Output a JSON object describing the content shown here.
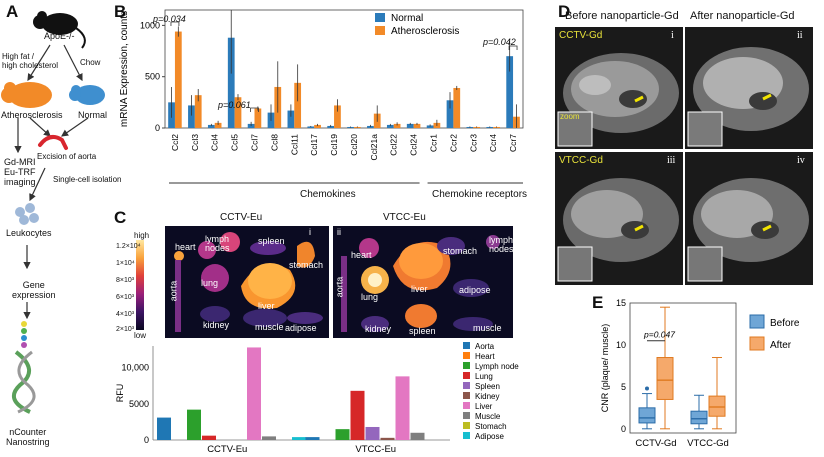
{
  "panels": {
    "a": "A",
    "b": "B",
    "c": "C",
    "d": "D",
    "e": "E"
  },
  "panel_a": {
    "mouse": "ApoE-/-",
    "diet_high": "High fat /\nhigh cholesterol",
    "diet_chow": "Chow",
    "athero": "Atherosclerosis",
    "normal": "Normal",
    "excision": "Excision of aorta",
    "imaging": "Gd-MRI\nEu-TRF\nimaging",
    "isolation": "Single-cell isolation",
    "leukocytes": "Leukocytes",
    "gene": "Gene\nexpression",
    "nanostring": "nCounter\nNanostring"
  },
  "panel_b": {
    "ylabel": "mRNA Expression, counts",
    "p1": "p=0.034",
    "p2": "p=0.061",
    "p3": "p=0.042",
    "group_chemokines": "Chemokines",
    "group_receptors": "Chemokine receptors"
  },
  "panel_c": {
    "img1_title": "CCTV-Eu",
    "img2_title": "VTCC-Eu",
    "img1_num": "i",
    "img2_num": "ii",
    "scale_high": "high",
    "scale_low": "low",
    "scale_ticks": [
      "1.2×10⁴",
      "1×10⁴",
      "8×10³",
      "6×10³",
      "4×10³",
      "2×10³"
    ],
    "organs1": [
      "heart",
      "lymph\nnodes",
      "spleen",
      "stomach",
      "aorta",
      "lung",
      "liver",
      "kidney",
      "muscle",
      "adipose"
    ],
    "organs2": [
      "heart",
      "stomach",
      "lymph\nnodes",
      "aorta",
      "lung",
      "liver",
      "adipose",
      "kidney",
      "spleen",
      "muscle"
    ]
  },
  "panel_d": {
    "before": "Before nanoparticle-Gd",
    "after": "After nanoparticle-Gd",
    "row1_label": "CCTV-Gd",
    "row2_label": "VTCC-Gd",
    "zoom": "zoom",
    "nums": [
      "i",
      "ii",
      "iii",
      "iv"
    ]
  },
  "chart_data": [
    {
      "type": "bar",
      "title": "",
      "ylabel": "mRNA Expression, counts",
      "xlabel": "",
      "ylim": [
        0,
        1150
      ],
      "yticks": [
        0,
        500,
        1000
      ],
      "categories": [
        "Ccl2",
        "Ccl3",
        "Ccl4",
        "Ccl5",
        "Ccl7",
        "Ccl8",
        "Ccl11",
        "Ccl17",
        "Ccl19",
        "Ccl20",
        "Ccl21a",
        "Ccl22",
        "Ccl24",
        "Ccr1",
        "Ccr2",
        "Ccr3",
        "Ccr4",
        "Ccr7"
      ],
      "series": [
        {
          "name": "Normal",
          "color": "#2b7bba",
          "values": [
            250,
            220,
            30,
            880,
            40,
            150,
            170,
            15,
            20,
            10,
            20,
            30,
            40,
            25,
            270,
            10,
            10,
            700
          ],
          "err": [
            150,
            100,
            10,
            350,
            20,
            80,
            60,
            5,
            10,
            5,
            10,
            10,
            10,
            10,
            80,
            5,
            5,
            150
          ]
        },
        {
          "name": "Atherosclerosis",
          "color": "#f28a28",
          "values": [
            940,
            320,
            50,
            300,
            190,
            400,
            440,
            30,
            220,
            10,
            140,
            40,
            40,
            50,
            390,
            10,
            10,
            110
          ],
          "err": [
            50,
            60,
            20,
            30,
            20,
            250,
            180,
            10,
            60,
            5,
            80,
            15,
            10,
            30,
            20,
            5,
            5,
            120
          ]
        }
      ],
      "legend": "top-right"
    },
    {
      "type": "bar",
      "ylabel": "RFU",
      "ylim": [
        0,
        13000
      ],
      "yticks": [
        0,
        5000,
        10000
      ],
      "ytick_labels": [
        "0",
        "5000",
        "10,000"
      ],
      "categories": [
        "CCTV-Eu",
        "VTCC-Eu"
      ],
      "series": [
        {
          "name": "Aorta",
          "color": "#1f77b4",
          "values": [
            3100,
            400
          ]
        },
        {
          "name": "Heart",
          "color": "#ff7f0e",
          "values": [
            0,
            0
          ]
        },
        {
          "name": "Lymph node",
          "color": "#2ca02c",
          "values": [
            4200,
            1500
          ]
        },
        {
          "name": "Lung",
          "color": "#d62728",
          "values": [
            600,
            6800
          ]
        },
        {
          "name": "Spleen",
          "color": "#9467bd",
          "values": [
            0,
            1800
          ]
        },
        {
          "name": "Kidney",
          "color": "#8c564b",
          "values": [
            0,
            300
          ]
        },
        {
          "name": "Liver",
          "color": "#e377c2",
          "values": [
            12800,
            8800
          ]
        },
        {
          "name": "Muscle",
          "color": "#7f7f7f",
          "values": [
            500,
            1000
          ]
        },
        {
          "name": "Stomach",
          "color": "#bcbd22",
          "values": [
            0,
            0
          ]
        },
        {
          "name": "Adipose",
          "color": "#17becf",
          "values": [
            400,
            0
          ]
        }
      ],
      "legend": "right"
    },
    {
      "type": "box",
      "ylabel": "CNR (plaque/ muscle)",
      "ylim": [
        -0.5,
        15
      ],
      "yticks": [
        0,
        5,
        10,
        15
      ],
      "categories": [
        "CCTV-Gd",
        "VTCC-Gd"
      ],
      "annotation": "p=0.047",
      "series": [
        {
          "name": "Before",
          "color": "#6fa6d6",
          "boxes": [
            {
              "min": 0,
              "q1": 0.7,
              "median": 1.3,
              "q3": 2.5,
              "max": 4.2,
              "outliers": [
                4.8
              ]
            },
            {
              "min": 0,
              "q1": 0.6,
              "median": 1.2,
              "q3": 2.1,
              "max": 4.0,
              "outliers": []
            }
          ]
        },
        {
          "name": "After",
          "color": "#f5a96b",
          "boxes": [
            {
              "min": 0,
              "q1": 3.5,
              "median": 5.8,
              "q3": 8.5,
              "max": 14.5,
              "outliers": []
            },
            {
              "min": 0,
              "q1": 1.5,
              "median": 2.6,
              "q3": 3.9,
              "max": 8.5,
              "outliers": []
            }
          ]
        }
      ],
      "legend": "right"
    }
  ]
}
